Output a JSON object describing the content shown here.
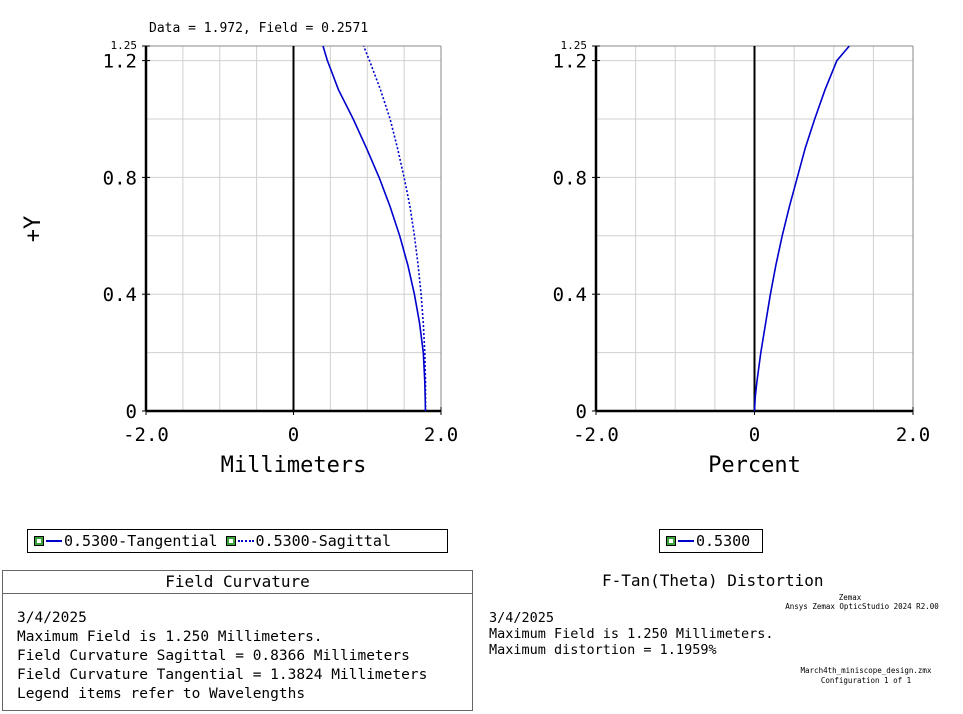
{
  "cursor_readout": "Data = 1.972, Field = 0.2571",
  "field_curvature": {
    "title": "Field Curvature",
    "date": "3/4/2025",
    "lines": [
      "Maximum Field is 1.250 Millimeters.",
      "Field Curvature Sagittal = 0.8366 Millimeters",
      "Field Curvature Tangential = 1.3824 Millimeters",
      "Legend items refer to Wavelengths"
    ],
    "legend": [
      {
        "label": "0.5300-Tangential",
        "style": "solid"
      },
      {
        "label": "0.5300-Sagittal",
        "style": "dotted"
      }
    ]
  },
  "distortion": {
    "title": "F-Tan(Theta) Distortion",
    "date": "3/4/2025",
    "lines": [
      "Maximum Field is 1.250 Millimeters.",
      "Maximum distortion = 1.1959%"
    ],
    "legend": [
      {
        "label": "0.5300",
        "style": "solid"
      }
    ]
  },
  "branding": {
    "company": "Zemax",
    "product": "Ansys Zemax OpticStudio 2024 R2.00",
    "file": "March4th_miniscope_design.zmx",
    "configuration": "Configuration 1 of 1"
  },
  "colors": {
    "series": "#0000cc",
    "grid": "#d0d0d0",
    "axis": "#000000"
  },
  "chart_data": [
    {
      "type": "line",
      "title": "Field Curvature",
      "xlabel": "Millimeters",
      "ylabel": "+Y",
      "xlim": [
        -2.0,
        2.0
      ],
      "ylim": [
        0,
        1.25
      ],
      "x_ticks": [
        "-2.0",
        "0",
        "2.0"
      ],
      "y_ticks": [
        {
          "value": 0,
          "label": "0"
        },
        {
          "value": 0.4,
          "label": "0.4"
        },
        {
          "value": 0.8,
          "label": "0.8"
        },
        {
          "value": 1.2,
          "label": "1.2"
        },
        {
          "value": 1.25,
          "label": "1.25"
        }
      ],
      "grid": true,
      "series": [
        {
          "name": "0.5300-Tangential",
          "style": "solid",
          "y": [
            0,
            0.1,
            0.2,
            0.3,
            0.4,
            0.5,
            0.6,
            0.7,
            0.8,
            0.9,
            1.0,
            1.1,
            1.2,
            1.25
          ],
          "x": [
            1.79,
            1.78,
            1.76,
            1.71,
            1.64,
            1.55,
            1.44,
            1.31,
            1.16,
            0.99,
            0.81,
            0.61,
            0.46,
            0.4
          ]
        },
        {
          "name": "0.5300-Sagittal",
          "style": "dotted",
          "y": [
            0,
            0.1,
            0.2,
            0.3,
            0.4,
            0.5,
            0.6,
            0.7,
            0.8,
            0.9,
            1.0,
            1.1,
            1.2,
            1.25
          ],
          "x": [
            1.79,
            1.79,
            1.78,
            1.76,
            1.73,
            1.69,
            1.64,
            1.58,
            1.5,
            1.41,
            1.31,
            1.18,
            1.03,
            0.95
          ]
        }
      ]
    },
    {
      "type": "line",
      "title": "F-Tan(Theta) Distortion",
      "xlabel": "Percent",
      "xlim": [
        -2.0,
        2.0
      ],
      "ylim": [
        0,
        1.25
      ],
      "x_ticks": [
        "-2.0",
        "0",
        "2.0"
      ],
      "y_ticks": [
        {
          "value": 0,
          "label": "0"
        },
        {
          "value": 0.4,
          "label": "0.4"
        },
        {
          "value": 0.8,
          "label": "0.8"
        },
        {
          "value": 1.2,
          "label": "1.2"
        },
        {
          "value": 1.25,
          "label": "1.25"
        }
      ],
      "grid": true,
      "series": [
        {
          "name": "0.5300",
          "style": "solid",
          "y": [
            0,
            0.05,
            0.1,
            0.2,
            0.3,
            0.4,
            0.5,
            0.6,
            0.7,
            0.8,
            0.9,
            1.0,
            1.1,
            1.2,
            1.25
          ],
          "x": [
            0,
            0.01,
            0.03,
            0.08,
            0.14,
            0.2,
            0.27,
            0.35,
            0.44,
            0.54,
            0.64,
            0.76,
            0.89,
            1.04,
            1.196
          ]
        }
      ]
    }
  ]
}
